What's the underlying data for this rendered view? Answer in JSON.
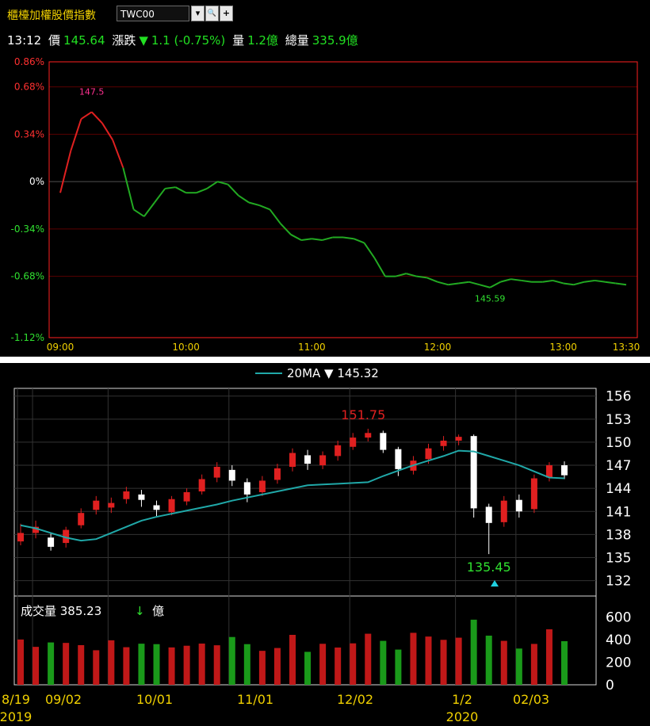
{
  "header": {
    "title": "櫃檯加權股價指數",
    "symbol": "TWC00",
    "dropdown_icon": "▾",
    "search_icon": "🔍",
    "add_icon": "+",
    "time": "13:12",
    "price_label": "價",
    "price": "145.64",
    "change_label": "漲跌",
    "change_arrow": "▼",
    "change": "1.1 (-0.75%)",
    "vol_label": "量",
    "vol": "1.2億",
    "total_vol_label": "總量",
    "total_vol": "335.9億"
  },
  "intraday_yticks": [
    "0.86%",
    "0.68%",
    "0.34%",
    "0%",
    "-0.34%",
    "-0.68%",
    "-1.12%"
  ],
  "intraday_xticks": [
    "09:00",
    "10:00",
    "11:00",
    "12:00",
    "13:00",
    "13:30"
  ],
  "intraday_high_label": "147.5",
  "intraday_low_label": "145.59",
  "daily_legend": {
    "ma_label": "20MA",
    "arrow": "▼",
    "value": "145.32"
  },
  "daily_price_ticks": [
    "156",
    "153",
    "150",
    "147",
    "144",
    "141",
    "138",
    "135",
    "132"
  ],
  "daily_high_label": "151.75",
  "daily_low_label": "135.45",
  "volume_label": {
    "name": "成交量",
    "value": "385.23",
    "arrow": "↓",
    "unit": "億"
  },
  "volume_ticks": [
    "600",
    "400",
    "200",
    "0"
  ],
  "date_ticks": [
    "8/19",
    "09/02",
    "10/01",
    "11/01",
    "12/02",
    "1/2",
    "02/03"
  ],
  "year_labels": [
    "2019",
    "2020"
  ],
  "colors": {
    "up": "#e02020",
    "down": "#22bb22",
    "ma": "#20a8a8",
    "grid": "#5a0000",
    "axis": "#ff2020"
  },
  "chart_data": [
    {
      "type": "line",
      "title": "櫃檯加權股價指數 intraday",
      "y_unit": "% change",
      "ylim": [
        -1.12,
        0.86
      ],
      "x": [
        "09:00",
        "09:05",
        "09:10",
        "09:15",
        "09:20",
        "09:25",
        "09:30",
        "09:35",
        "09:40",
        "09:45",
        "09:50",
        "09:55",
        "10:00",
        "10:05",
        "10:10",
        "10:15",
        "10:20",
        "10:25",
        "10:30",
        "10:35",
        "10:40",
        "10:45",
        "10:50",
        "10:55",
        "11:00",
        "11:05",
        "11:10",
        "11:15",
        "11:20",
        "11:25",
        "11:30",
        "11:35",
        "11:40",
        "11:45",
        "11:50",
        "11:55",
        "12:00",
        "12:05",
        "12:10",
        "12:15",
        "12:20",
        "12:25",
        "12:30",
        "12:35",
        "12:40",
        "12:45",
        "12:50",
        "12:55",
        "13:00",
        "13:05",
        "13:10",
        "13:15",
        "13:20",
        "13:25",
        "13:30"
      ],
      "values": [
        -0.08,
        0.22,
        0.45,
        0.5,
        0.42,
        0.3,
        0.1,
        -0.2,
        -0.25,
        -0.15,
        -0.05,
        -0.04,
        -0.08,
        -0.08,
        -0.05,
        0.0,
        -0.02,
        -0.1,
        -0.15,
        -0.17,
        -0.2,
        -0.3,
        -0.38,
        -0.42,
        -0.41,
        -0.42,
        -0.4,
        -0.4,
        -0.41,
        -0.44,
        -0.55,
        -0.68,
        -0.68,
        -0.66,
        -0.68,
        -0.69,
        -0.72,
        -0.74,
        -0.73,
        -0.72,
        -0.74,
        -0.76,
        -0.72,
        -0.7,
        -0.71,
        -0.72,
        -0.72,
        -0.71,
        -0.73,
        -0.74,
        -0.72,
        -0.71,
        -0.72,
        -0.73,
        -0.74
      ],
      "high": {
        "value": 147.5
      },
      "low": {
        "value": 145.59
      }
    },
    {
      "type": "candlestick",
      "title": "櫃檯加權股價指數 daily",
      "ylim": [
        130,
        157
      ],
      "series": [
        {
          "name": "20MA",
          "values": [
            139.2,
            138.8,
            138.2,
            137.6,
            137.2,
            137.4,
            138.2,
            139.0,
            139.8,
            140.3,
            140.7,
            141.1,
            141.5,
            141.9,
            142.4,
            142.8,
            143.2,
            143.6,
            144.0,
            144.4,
            144.5,
            144.6,
            144.7,
            144.8,
            145.6,
            146.3,
            147.0,
            147.6,
            148.2,
            148.9,
            148.8,
            148.2,
            147.6,
            147.0,
            146.2,
            145.4,
            145.3
          ]
        }
      ],
      "candles": [
        [
          137.1,
          138.2,
          139.4,
          136.6
        ],
        [
          138.2,
          139.0,
          139.8,
          137.5
        ],
        [
          137.6,
          136.4,
          138.2,
          135.9
        ],
        [
          136.9,
          138.6,
          139.0,
          136.3
        ],
        [
          139.2,
          140.8,
          141.4,
          138.8
        ],
        [
          141.2,
          142.4,
          143.0,
          140.6
        ],
        [
          141.5,
          142.1,
          142.8,
          140.8
        ],
        [
          142.6,
          143.6,
          144.2,
          142.0
        ],
        [
          143.2,
          142.5,
          143.8,
          141.6
        ],
        [
          141.8,
          141.2,
          142.4,
          140.4
        ],
        [
          140.9,
          142.6,
          143.0,
          140.5
        ],
        [
          142.3,
          143.5,
          144.0,
          141.8
        ],
        [
          143.6,
          145.2,
          145.8,
          143.2
        ],
        [
          145.4,
          146.8,
          147.4,
          144.8
        ],
        [
          146.4,
          145.0,
          147.0,
          144.3
        ],
        [
          144.8,
          143.2,
          145.3,
          142.2
        ],
        [
          143.5,
          145.0,
          145.6,
          143.0
        ],
        [
          145.1,
          146.6,
          147.2,
          144.6
        ],
        [
          146.8,
          148.6,
          149.2,
          146.2
        ],
        [
          148.3,
          147.2,
          149.0,
          146.4
        ],
        [
          147.0,
          148.3,
          148.8,
          146.5
        ],
        [
          148.2,
          149.6,
          150.2,
          147.6
        ],
        [
          149.4,
          150.6,
          151.2,
          149.0
        ],
        [
          150.6,
          151.2,
          151.75,
          150.1
        ],
        [
          151.2,
          149.0,
          151.5,
          148.6
        ],
        [
          149.1,
          146.5,
          149.4,
          145.6
        ],
        [
          146.3,
          147.6,
          148.2,
          145.8
        ],
        [
          147.8,
          149.2,
          149.8,
          147.2
        ],
        [
          149.5,
          150.2,
          150.8,
          148.9
        ],
        [
          150.2,
          150.7,
          151.0,
          149.6
        ],
        [
          150.8,
          141.4,
          151.0,
          140.2
        ],
        [
          141.6,
          139.5,
          142.0,
          135.45
        ],
        [
          139.6,
          142.4,
          143.0,
          139.0
        ],
        [
          142.5,
          141.0,
          143.2,
          140.2
        ],
        [
          141.3,
          145.3,
          145.8,
          140.8
        ],
        [
          145.4,
          147.0,
          147.4,
          144.9
        ],
        [
          147.0,
          145.7,
          147.5,
          145.2
        ]
      ],
      "high": {
        "value": 151.75
      },
      "low": {
        "value": 135.45
      }
    },
    {
      "type": "bar",
      "title": "成交量",
      "ylim": [
        0,
        700
      ],
      "values": [
        400,
        335,
        374,
        370,
        350,
        305,
        393,
        332,
        363,
        359,
        330,
        345,
        364,
        349,
        422,
        359,
        300,
        325,
        441,
        291,
        362,
        329,
        366,
        451,
        388,
        311,
        459,
        426,
        397,
        416,
        575,
        434,
        388,
        320,
        361,
        490,
        385
      ]
    }
  ]
}
